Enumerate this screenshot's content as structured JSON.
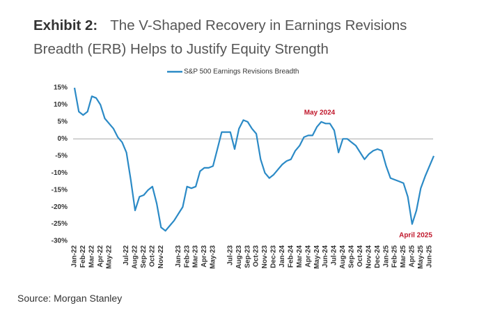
{
  "exhibit": "Exhibit 2:",
  "source": "Source: Morgan Stanley",
  "chart_data": {
    "type": "line",
    "title": "The V-Shaped Recovery in Earnings Revisions Breadth (ERB) Helps to Justify Equity Strength",
    "categories": [
      "Jan-22",
      null,
      "Feb-22",
      null,
      "Mar-22",
      null,
      "Apr-22",
      null,
      "May-22",
      null,
      null,
      null,
      "Jul-22",
      null,
      "Aug-22",
      null,
      "Sep-22",
      null,
      "Oct-22",
      null,
      "Nov-22",
      null,
      null,
      null,
      "Jan-23",
      null,
      "Feb-23",
      null,
      "Mar-23",
      null,
      "Apr-23",
      null,
      "May-23",
      null,
      null,
      null,
      "Jul-23",
      null,
      "Aug-23",
      null,
      "Sep-23",
      null,
      "Oct-23",
      null,
      "Nov-23",
      null,
      "Dec-23",
      null,
      "Jan-24",
      null,
      "Feb-24",
      null,
      "Mar-24",
      null,
      "Apr-24",
      null,
      "May-24",
      null,
      "Jun-24",
      null,
      "Jul-24",
      null,
      "Aug-24",
      null,
      "Sep-24",
      null,
      "Oct-24",
      null,
      "Nov-24",
      null,
      "Dec-24",
      null,
      "Jan-25",
      null,
      "Feb-25",
      null,
      "Mar-25",
      null,
      "Apr-25",
      null,
      "May-25",
      null,
      "Jun-25",
      null
    ],
    "series": [
      {
        "name": "S&P 500 Earnings Revisions Breadth",
        "color": "#2b8ac6",
        "values": [
          15,
          8,
          7,
          8,
          12.5,
          12,
          10,
          6,
          4.5,
          3,
          0.5,
          -1,
          -4,
          -12,
          -21,
          -17,
          -16.5,
          -15,
          -14,
          -19,
          -26,
          -27,
          -25.5,
          -24,
          -22,
          -20,
          -14,
          -14.5,
          -14,
          -9.5,
          -8.5,
          -8.5,
          -8,
          -3,
          2,
          2,
          2,
          -3,
          3,
          5.5,
          5,
          3,
          1.5,
          -6,
          -10,
          -11.5,
          -10.5,
          -9,
          -7.5,
          -6.5,
          -6,
          -3.5,
          -2,
          0.5,
          1,
          1,
          3.5,
          5,
          4.5,
          4.5,
          2.5,
          -4,
          0,
          0,
          -1,
          -2,
          -4,
          -6,
          -4.5,
          -3.5,
          -3,
          -3.5,
          -8,
          -11.5,
          -12,
          -12.5,
          -13,
          -17,
          -25,
          -21,
          -14.5,
          -11,
          -8,
          -5
        ]
      }
    ],
    "ylim": [
      -30,
      15
    ],
    "yticks": [
      {
        "value": -30,
        "label": "-30%"
      },
      {
        "value": -25,
        "label": "-25%"
      },
      {
        "value": -20,
        "label": "-20%"
      },
      {
        "value": -15,
        "label": "-15%"
      },
      {
        "value": -10,
        "label": "-10%"
      },
      {
        "value": -5,
        "label": "-5%"
      },
      {
        "value": 0,
        "label": "0%"
      },
      {
        "value": 5,
        "label": "5%"
      },
      {
        "value": 10,
        "label": "10%"
      },
      {
        "value": 15,
        "label": "15%"
      }
    ],
    "annotations": [
      {
        "text": "May 2024",
        "color": "#c0172b"
      },
      {
        "text": "April 2025",
        "color": "#c0172b"
      }
    ],
    "legend": "top"
  }
}
